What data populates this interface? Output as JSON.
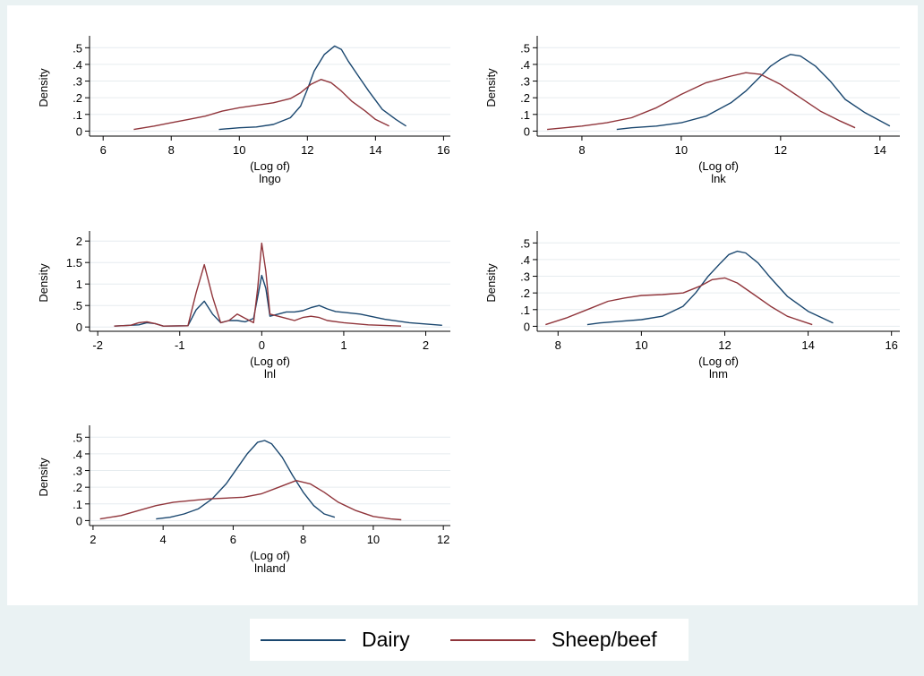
{
  "colors": {
    "dairy": "#1a476f",
    "sheepbeef": "#90353b",
    "background": "#eaf2f3",
    "plot_region": "#ffffff",
    "grid": "#e6ecef"
  },
  "legend": {
    "dairy_label": "Dairy",
    "sheepbeef_label": "Sheep/beef"
  },
  "chart_data": [
    {
      "type": "line",
      "ylabel": "Density",
      "xlabel_line1": "(Log of)",
      "xlabel_line2": "lngo",
      "xlim": [
        5.6,
        16.2
      ],
      "ylim": [
        -0.03,
        0.55
      ],
      "xticks": [
        6,
        8,
        10,
        12,
        14,
        16
      ],
      "yticks": [
        0,
        0.1,
        0.2,
        0.3,
        0.4,
        0.5
      ],
      "ytick_labels": [
        "0",
        ".1",
        ".2",
        ".3",
        ".4",
        ".5"
      ],
      "series": [
        {
          "name": "Dairy",
          "color_key": "dairy",
          "x": [
            9.4,
            10.0,
            10.5,
            11.0,
            11.5,
            11.8,
            12.0,
            12.2,
            12.5,
            12.8,
            13.0,
            13.2,
            13.5,
            13.8,
            14.2,
            14.6,
            14.9
          ],
          "y": [
            0.01,
            0.02,
            0.025,
            0.04,
            0.08,
            0.15,
            0.25,
            0.36,
            0.46,
            0.51,
            0.49,
            0.42,
            0.33,
            0.24,
            0.13,
            0.07,
            0.03
          ]
        },
        {
          "name": "Sheep/beef",
          "color_key": "sheepbeef",
          "x": [
            6.9,
            7.5,
            8.0,
            8.5,
            9.0,
            9.5,
            10.0,
            10.5,
            11.0,
            11.5,
            11.8,
            12.1,
            12.4,
            12.7,
            13.0,
            13.3,
            13.7,
            14.0,
            14.4
          ],
          "y": [
            0.01,
            0.03,
            0.05,
            0.07,
            0.09,
            0.12,
            0.14,
            0.155,
            0.17,
            0.195,
            0.23,
            0.28,
            0.31,
            0.29,
            0.24,
            0.18,
            0.12,
            0.07,
            0.03
          ]
        }
      ]
    },
    {
      "type": "line",
      "ylabel": "Density",
      "xlabel_line1": "(Log of)",
      "xlabel_line2": "lnk",
      "xlim": [
        7.1,
        14.4
      ],
      "ylim": [
        -0.03,
        0.55
      ],
      "xticks": [
        8,
        10,
        12,
        14
      ],
      "yticks": [
        0,
        0.1,
        0.2,
        0.3,
        0.4,
        0.5
      ],
      "ytick_labels": [
        "0",
        ".1",
        ".2",
        ".3",
        ".4",
        ".5"
      ],
      "series": [
        {
          "name": "Dairy",
          "color_key": "dairy",
          "x": [
            8.7,
            9.0,
            9.5,
            10.0,
            10.5,
            11.0,
            11.3,
            11.6,
            11.8,
            12.0,
            12.2,
            12.4,
            12.7,
            13.0,
            13.3,
            13.7,
            14.2
          ],
          "y": [
            0.01,
            0.02,
            0.03,
            0.05,
            0.09,
            0.17,
            0.24,
            0.33,
            0.39,
            0.43,
            0.46,
            0.45,
            0.39,
            0.3,
            0.19,
            0.11,
            0.03
          ]
        },
        {
          "name": "Sheep/beef",
          "color_key": "sheepbeef",
          "x": [
            7.3,
            8.0,
            8.5,
            9.0,
            9.5,
            10.0,
            10.5,
            11.0,
            11.3,
            11.6,
            12.0,
            12.4,
            12.8,
            13.2,
            13.5
          ],
          "y": [
            0.01,
            0.03,
            0.05,
            0.08,
            0.14,
            0.22,
            0.29,
            0.33,
            0.35,
            0.34,
            0.28,
            0.2,
            0.12,
            0.06,
            0.02
          ]
        }
      ]
    },
    {
      "type": "line",
      "ylabel": "Density",
      "xlabel_line1": "(Log of)",
      "xlabel_line2": "lnl",
      "xlim": [
        -2.1,
        2.3
      ],
      "ylim": [
        -0.1,
        2.15
      ],
      "xticks": [
        -2,
        -1,
        0,
        1,
        2
      ],
      "yticks": [
        0,
        0.5,
        1,
        1.5,
        2
      ],
      "ytick_labels": [
        "0",
        ".5",
        "1",
        "1.5",
        "2"
      ],
      "series": [
        {
          "name": "Dairy",
          "color_key": "dairy",
          "x": [
            -1.8,
            -1.5,
            -1.4,
            -1.3,
            -1.2,
            -0.9,
            -0.8,
            -0.7,
            -0.6,
            -0.5,
            -0.4,
            -0.3,
            -0.2,
            -0.1,
            -0.05,
            0.0,
            0.05,
            0.1,
            0.2,
            0.3,
            0.4,
            0.5,
            0.6,
            0.7,
            0.8,
            0.9,
            1.2,
            1.5,
            1.8,
            2.2
          ],
          "y": [
            0.02,
            0.05,
            0.1,
            0.08,
            0.02,
            0.03,
            0.4,
            0.6,
            0.3,
            0.1,
            0.15,
            0.15,
            0.12,
            0.2,
            0.7,
            1.2,
            0.9,
            0.25,
            0.3,
            0.35,
            0.35,
            0.38,
            0.45,
            0.5,
            0.42,
            0.36,
            0.3,
            0.18,
            0.1,
            0.04
          ]
        },
        {
          "name": "Sheep/beef",
          "color_key": "sheepbeef",
          "x": [
            -1.8,
            -1.6,
            -1.5,
            -1.4,
            -1.3,
            -1.2,
            -0.9,
            -0.8,
            -0.7,
            -0.6,
            -0.5,
            -0.4,
            -0.3,
            -0.2,
            -0.1,
            -0.05,
            0.0,
            0.05,
            0.1,
            0.2,
            0.3,
            0.4,
            0.5,
            0.6,
            0.7,
            0.8,
            1.0,
            1.3,
            1.7
          ],
          "y": [
            0.02,
            0.04,
            0.1,
            0.12,
            0.08,
            0.02,
            0.03,
            0.8,
            1.45,
            0.7,
            0.1,
            0.15,
            0.3,
            0.2,
            0.1,
            0.9,
            1.95,
            1.3,
            0.3,
            0.25,
            0.2,
            0.15,
            0.22,
            0.25,
            0.22,
            0.15,
            0.1,
            0.05,
            0.02
          ]
        }
      ]
    },
    {
      "type": "line",
      "ylabel": "Density",
      "xlabel_line1": "(Log of)",
      "xlabel_line2": "lnm",
      "xlim": [
        7.5,
        16.2
      ],
      "ylim": [
        -0.03,
        0.55
      ],
      "xticks": [
        8,
        10,
        12,
        14,
        16
      ],
      "yticks": [
        0,
        0.1,
        0.2,
        0.3,
        0.4,
        0.5
      ],
      "ytick_labels": [
        "0",
        ".1",
        ".2",
        ".3",
        ".4",
        ".5"
      ],
      "series": [
        {
          "name": "Dairy",
          "color_key": "dairy",
          "x": [
            8.7,
            9.0,
            9.5,
            10.0,
            10.5,
            11.0,
            11.3,
            11.6,
            11.9,
            12.1,
            12.3,
            12.5,
            12.8,
            13.1,
            13.5,
            14.0,
            14.6
          ],
          "y": [
            0.01,
            0.02,
            0.03,
            0.04,
            0.06,
            0.12,
            0.2,
            0.3,
            0.38,
            0.43,
            0.45,
            0.44,
            0.38,
            0.29,
            0.18,
            0.09,
            0.02
          ]
        },
        {
          "name": "Sheep/beef",
          "color_key": "sheepbeef",
          "x": [
            7.7,
            8.2,
            8.7,
            9.2,
            9.6,
            10.0,
            10.5,
            11.0,
            11.4,
            11.7,
            12.0,
            12.3,
            12.7,
            13.1,
            13.5,
            14.1
          ],
          "y": [
            0.01,
            0.05,
            0.1,
            0.15,
            0.17,
            0.185,
            0.19,
            0.2,
            0.24,
            0.28,
            0.29,
            0.26,
            0.19,
            0.12,
            0.06,
            0.01
          ]
        }
      ]
    },
    {
      "type": "line",
      "ylabel": "Density",
      "xlabel_line1": "(Log of)",
      "xlabel_line2": "lnland",
      "xlim": [
        1.9,
        12.2
      ],
      "ylim": [
        -0.03,
        0.55
      ],
      "xticks": [
        2,
        4,
        6,
        8,
        10,
        12
      ],
      "yticks": [
        0,
        0.1,
        0.2,
        0.3,
        0.4,
        0.5
      ],
      "ytick_labels": [
        "0",
        ".1",
        ".2",
        ".3",
        ".4",
        ".5"
      ],
      "series": [
        {
          "name": "Dairy",
          "color_key": "dairy",
          "x": [
            3.8,
            4.2,
            4.6,
            5.0,
            5.4,
            5.8,
            6.1,
            6.4,
            6.7,
            6.9,
            7.1,
            7.4,
            7.7,
            8.0,
            8.3,
            8.6,
            8.9
          ],
          "y": [
            0.01,
            0.02,
            0.04,
            0.07,
            0.13,
            0.22,
            0.31,
            0.4,
            0.47,
            0.48,
            0.46,
            0.38,
            0.27,
            0.17,
            0.09,
            0.04,
            0.02
          ]
        },
        {
          "name": "Sheep/beef",
          "color_key": "sheepbeef",
          "x": [
            2.2,
            2.8,
            3.3,
            3.8,
            4.3,
            4.8,
            5.3,
            5.8,
            6.3,
            6.8,
            7.3,
            7.8,
            8.2,
            8.6,
            9.0,
            9.5,
            10.0,
            10.5,
            10.8
          ],
          "y": [
            0.01,
            0.03,
            0.06,
            0.09,
            0.11,
            0.12,
            0.13,
            0.135,
            0.14,
            0.16,
            0.2,
            0.24,
            0.22,
            0.17,
            0.11,
            0.06,
            0.025,
            0.01,
            0.005
          ]
        }
      ]
    }
  ]
}
